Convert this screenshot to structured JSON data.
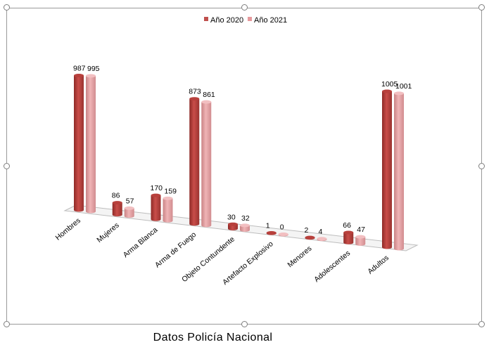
{
  "caption": "Datos Policía Nacional",
  "chart_data": {
    "type": "bar",
    "title": "",
    "categories": [
      "Hombres",
      "Mujeres",
      "Arma Blanca",
      "Arma de Fuego",
      "Objeto Contundente",
      "Artefacto Explosivo",
      "Menores",
      "Adolescentes",
      "Adultos"
    ],
    "series": [
      {
        "name": "Año 2020",
        "values": [
          987,
          86,
          170,
          873,
          30,
          1,
          2,
          66,
          1005
        ],
        "color": "#c0504d"
      },
      {
        "name": "Año 2021",
        "values": [
          995,
          57,
          159,
          861,
          32,
          0,
          4,
          47,
          1001
        ],
        "color": "#e6999c"
      }
    ],
    "ylim": [
      0,
      1005
    ],
    "legend": "top",
    "grid": false,
    "style": "3d-cylinder"
  }
}
